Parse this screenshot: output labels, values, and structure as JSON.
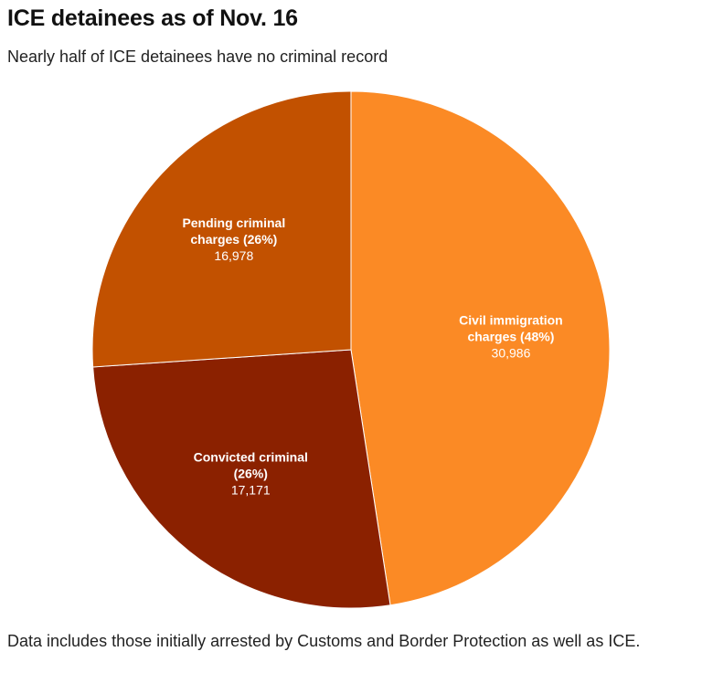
{
  "title": "ICE detainees as of Nov. 16",
  "subtitle": "Nearly half of ICE detainees have no criminal record",
  "note": "Data includes those initially arrested by Customs and Border Protection as well as ICE.",
  "chart_data": {
    "type": "pie",
    "slices": [
      {
        "label_line1": "Civil immigration",
        "label_line2": "charges (48%)",
        "value": 30986,
        "value_label": "30,986",
        "color": "#fb8a25"
      },
      {
        "label_line1": "Convicted criminal",
        "label_line2": "(26%)",
        "value": 17171,
        "value_label": "17,171",
        "color": "#8b2100"
      },
      {
        "label_line1": "Pending criminal",
        "label_line2": "charges (26%)",
        "value": 16978,
        "value_label": "16,978",
        "color": "#c25100"
      }
    ]
  }
}
